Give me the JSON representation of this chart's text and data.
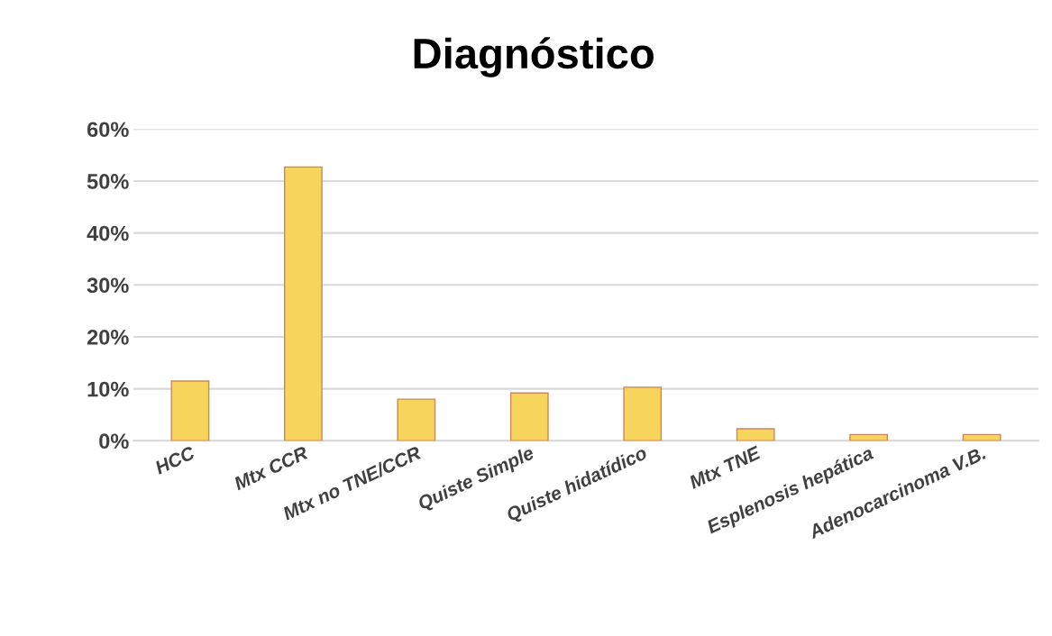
{
  "chart_data": {
    "type": "bar",
    "title": "Diagnóstico",
    "categories": [
      "HCC",
      "Mtx CCR",
      "Mtx no TNE/CCR",
      "Quiste Simple",
      "Quiste hidatídico",
      "Mtx TNE",
      "Esplenosis hepática",
      "Adenocarcinoma V.B."
    ],
    "values": [
      11.5,
      52.7,
      8.0,
      9.2,
      10.3,
      2.3,
      1.2,
      1.2
    ],
    "color": "#f7d55c",
    "ylim": [
      0,
      60
    ],
    "yticks": [
      {
        "value": 0,
        "label": "0%"
      },
      {
        "value": 10,
        "label": "10%"
      },
      {
        "value": 20,
        "label": "20%"
      },
      {
        "value": 30,
        "label": "30%"
      },
      {
        "value": 40,
        "label": "40%"
      },
      {
        "value": 50,
        "label": "50%"
      },
      {
        "value": 60,
        "label": "60%"
      }
    ],
    "grid": "y",
    "legend": false
  }
}
